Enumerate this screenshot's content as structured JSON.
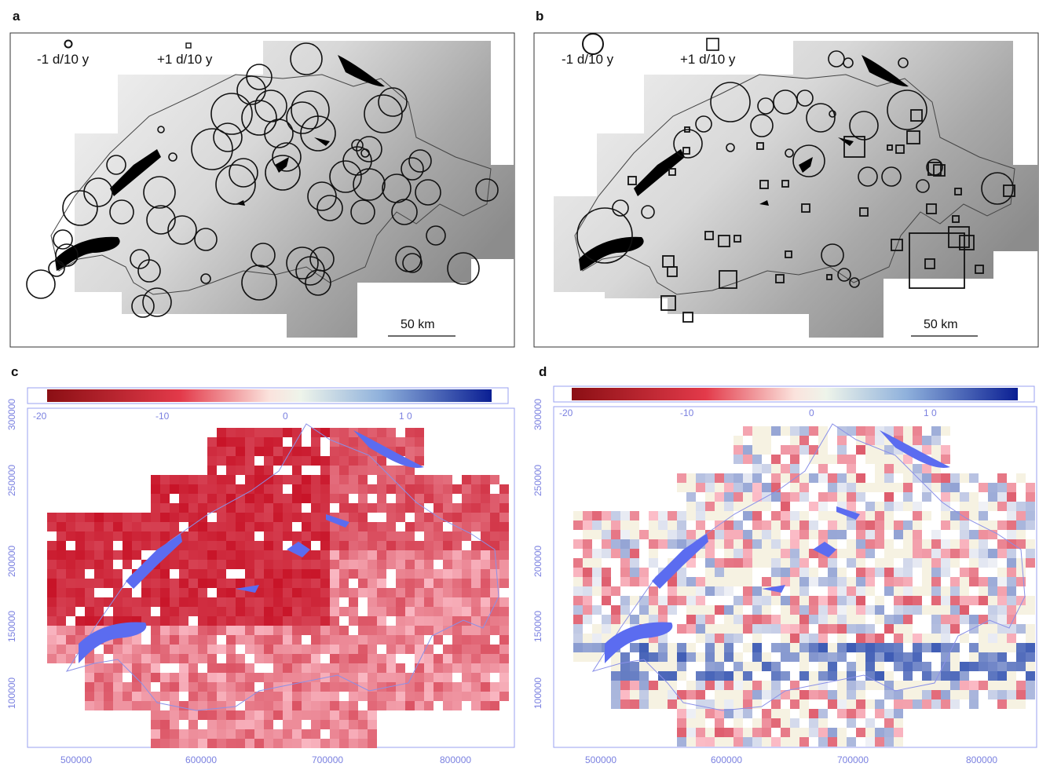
{
  "panels": {
    "a": {
      "label": "a",
      "legend_minus": "-1 d/10 y",
      "legend_plus": "+1 d/10 y",
      "scale_label": "50 km"
    },
    "b": {
      "label": "b",
      "legend_minus": "-1 d/10 y",
      "legend_plus": "+1 d/10 y",
      "scale_label": "50 km"
    },
    "c": {
      "label": "c",
      "colorbar_ticks": [
        "-20",
        "-10",
        "0",
        "1 0"
      ],
      "x_ticks": [
        "500000",
        "600000",
        "700000",
        "800000"
      ],
      "y_ticks": [
        "300000",
        "250000",
        "200000",
        "150000",
        "100000"
      ]
    },
    "d": {
      "label": "d",
      "colorbar_ticks": [
        "-20",
        "-10",
        "0",
        "1 0"
      ],
      "x_ticks": [
        "500000",
        "600000",
        "700000",
        "800000"
      ],
      "y_ticks": [
        "300000",
        "250000",
        "200000",
        "150000",
        "100000"
      ]
    }
  },
  "colors": {
    "lake": "#5b6cf0",
    "lake_dark": "#000000",
    "frame_blue": "#9aa0f0",
    "negative": "#c0141e",
    "positive": "#1f3fa0"
  }
}
